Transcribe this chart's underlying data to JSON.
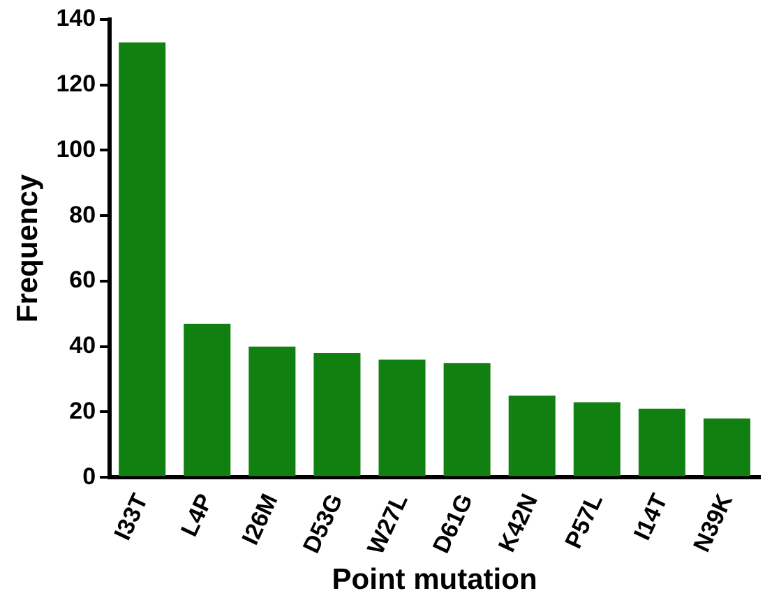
{
  "chart_data": {
    "type": "bar",
    "xlabel": "Point mutation",
    "ylabel": "Frequency",
    "categories": [
      "I33T",
      "L4P",
      "I26M",
      "D53G",
      "W27L",
      "D61G",
      "K42N",
      "P57L",
      "I14T",
      "N39K"
    ],
    "values": [
      133,
      47,
      40,
      38,
      36,
      35,
      25,
      23,
      21,
      18
    ],
    "color": "#108010",
    "ylim": [
      0,
      140
    ],
    "yticks": [
      0,
      20,
      40,
      60,
      80,
      100,
      120,
      140
    ],
    "grid": false,
    "legend": false
  }
}
